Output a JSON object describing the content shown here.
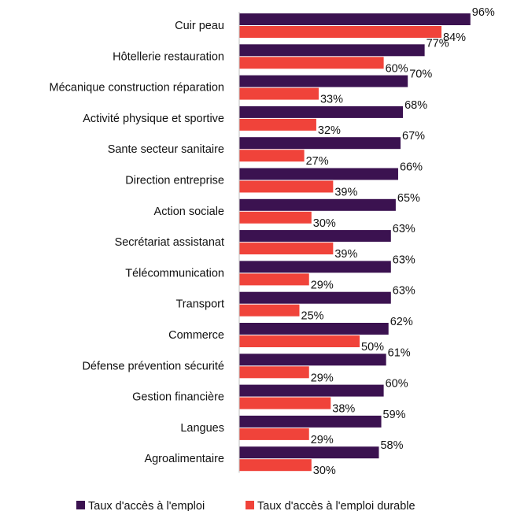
{
  "chart_data": {
    "type": "bar",
    "orientation": "horizontal",
    "categories": [
      "Cuir peau",
      "Hôtellerie restauration",
      "Mécanique construction réparation",
      "Activité physique et sportive",
      "Sante secteur sanitaire",
      "Direction entreprise",
      "Action sociale",
      "Secrétariat assistanat",
      "Télécommunication",
      "Transport",
      "Commerce",
      "Défense prévention sécurité",
      "Gestion financière",
      "Langues",
      "Agroalimentaire"
    ],
    "series": [
      {
        "name": "Taux d'accès à l'emploi",
        "color": "#3b1250",
        "values": [
          96,
          77,
          70,
          68,
          67,
          66,
          65,
          63,
          63,
          63,
          62,
          61,
          60,
          59,
          58
        ]
      },
      {
        "name": "Taux d'accès à l'emploi durable",
        "color": "#f0433a",
        "values": [
          84,
          60,
          33,
          32,
          27,
          39,
          30,
          39,
          29,
          25,
          50,
          29,
          38,
          29,
          30
        ]
      }
    ],
    "value_suffix": "%",
    "xlim": [
      0,
      100
    ],
    "grid": false,
    "legend_position": "bottom",
    "title": "",
    "xlabel": "",
    "ylabel": ""
  }
}
